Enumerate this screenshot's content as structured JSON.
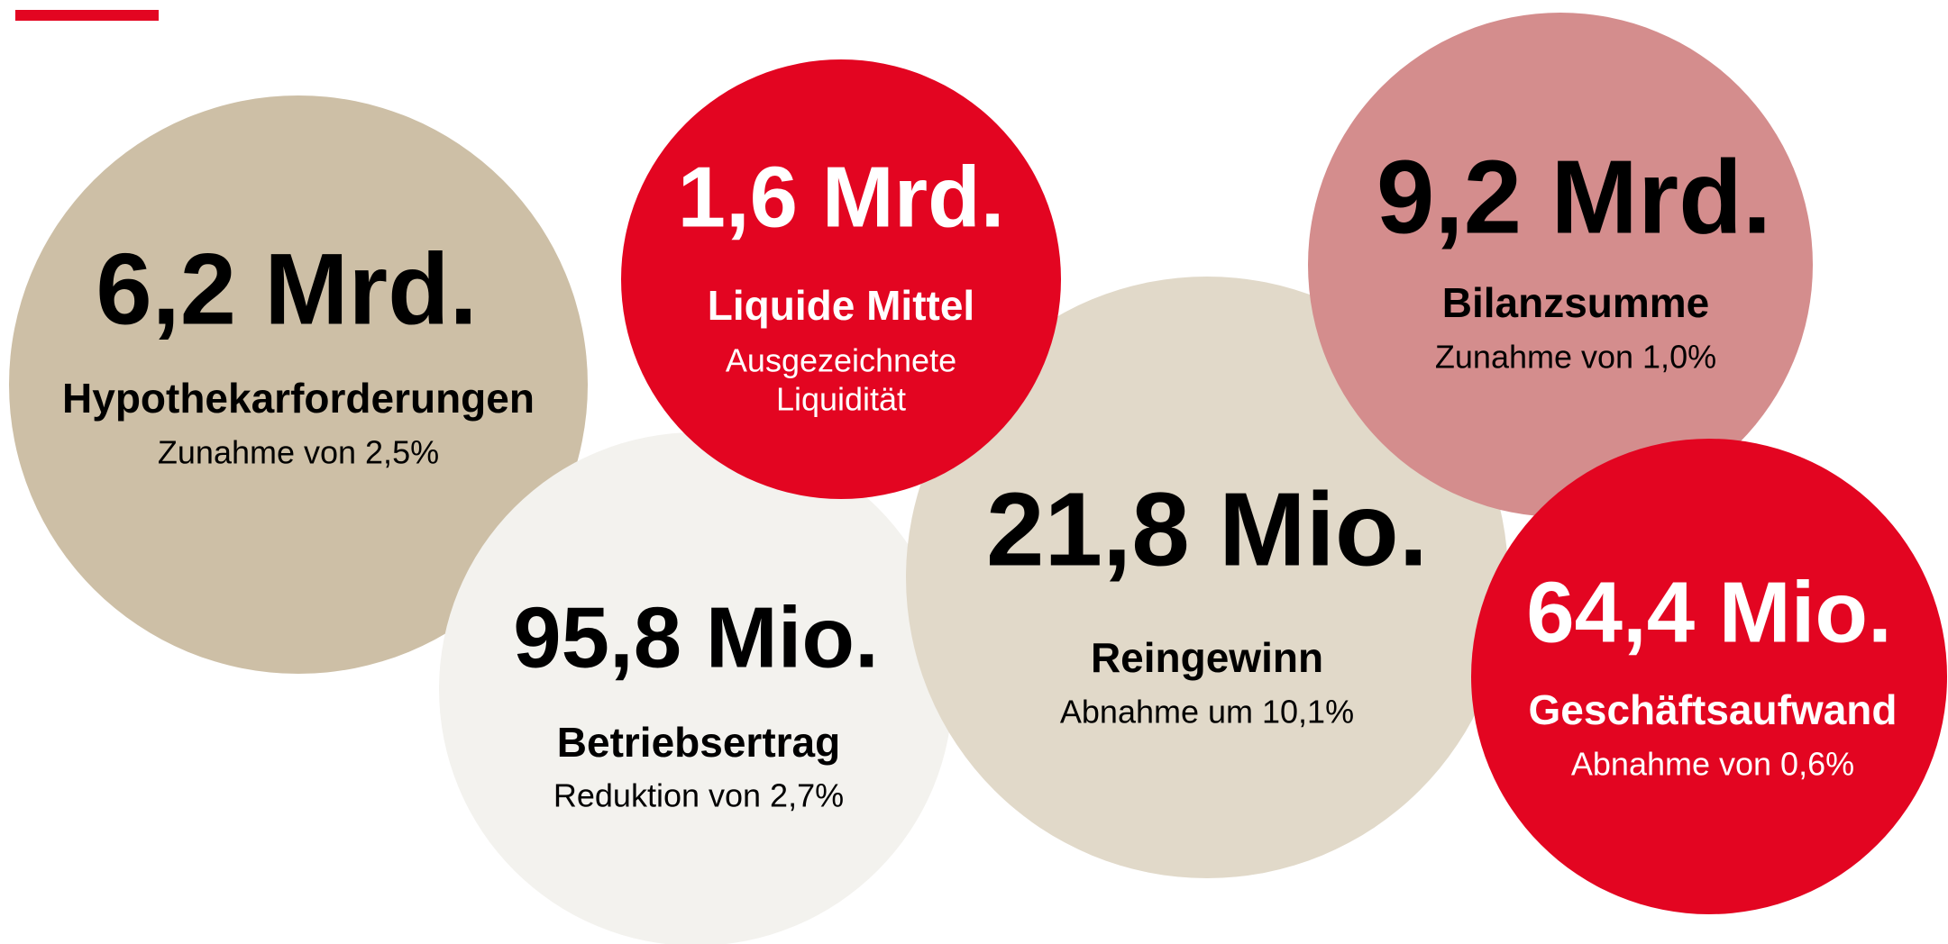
{
  "items": [
    {
      "value": "6,2 Mrd.",
      "label": "Hypothekarforderungen",
      "sub": [
        "Zunahme von 2,5%"
      ]
    },
    {
      "value": "95,8 Mio.",
      "label": "Betriebsertrag",
      "sub": [
        "Reduktion von 2,7%"
      ]
    },
    {
      "value": "21,8 Mio.",
      "label": "Reingewinn",
      "sub": [
        "Abnahme um 10,1%"
      ]
    },
    {
      "value": "1,6 Mrd.",
      "label": "Liquide Mittel",
      "sub": [
        "Ausgezeichnete",
        "Liquidität"
      ]
    },
    {
      "value": "9,2 Mrd.",
      "label": "Bilanzsumme",
      "sub": [
        "Zunahme von 1,0%"
      ]
    },
    {
      "value": "64,4 Mio.",
      "label": "Geschäftsaufwand",
      "sub": [
        "Abnahme von 0,6%"
      ]
    }
  ]
}
